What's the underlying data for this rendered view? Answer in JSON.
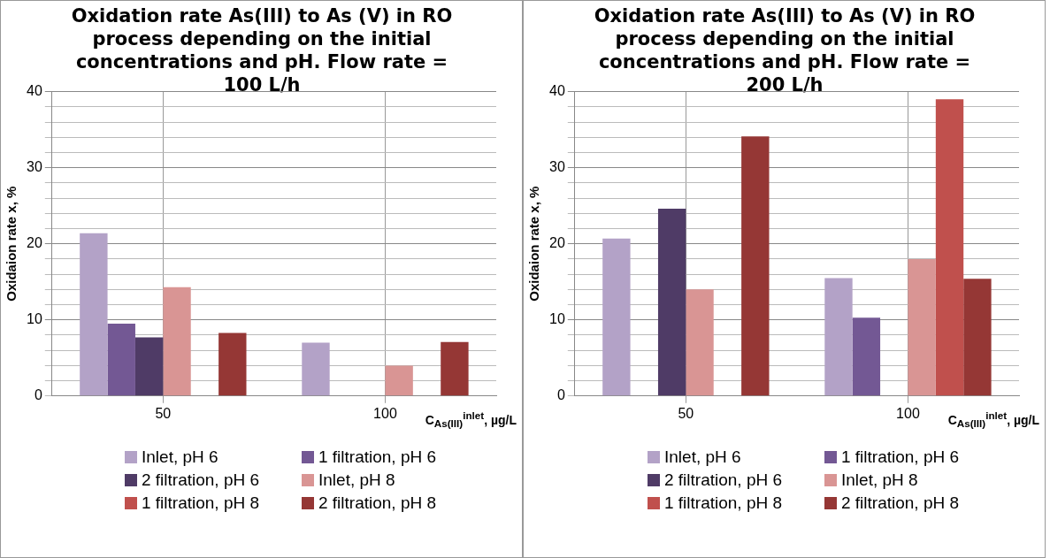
{
  "chart_data": [
    {
      "type": "bar",
      "title": "Oxidation rate As(III) to As (V) in RO process depending on the initial concentrations and pH. Flow rate = 100 L/h",
      "xlabel": "C$_{As(III)}$$^{inlet}$, µg/L",
      "ylabel": "Oxidaion rate x, %",
      "categories": [
        "50",
        "100"
      ],
      "series": [
        {
          "name": "Inlet, pH 6",
          "color": "#b3a2c7",
          "values": [
            21.4,
            7.0
          ]
        },
        {
          "name": "1 filtration, pH 6",
          "color": "#735894",
          "values": [
            9.5,
            null
          ]
        },
        {
          "name": "2 filtration, pH 6",
          "color": "#4f3b66",
          "values": [
            7.7,
            null
          ]
        },
        {
          "name": "Inlet, pH 8",
          "color": "#d99594",
          "values": [
            14.3,
            4.0
          ]
        },
        {
          "name": "1 filtration, pH 8",
          "color": "#c0504d",
          "values": [
            null,
            null
          ]
        },
        {
          "name": "2 filtration, pH 8",
          "color": "#953735",
          "values": [
            8.3,
            7.1
          ]
        }
      ],
      "ylim": [
        0,
        40
      ],
      "yticks": [
        0,
        {
          "value": 2,
          "label": null
        },
        {
          "value": 4,
          "label": null
        },
        {
          "value": 6,
          "label": null
        },
        {
          "value": 8,
          "label": null
        },
        10,
        {
          "value": 12,
          "label": null
        },
        {
          "value": 14,
          "label": null
        },
        {
          "value": 16,
          "label": null
        },
        {
          "value": 18,
          "label": null
        },
        20,
        {
          "value": 22,
          "label": null
        },
        {
          "value": 24,
          "label": null
        },
        {
          "value": 26,
          "label": null
        },
        {
          "value": 28,
          "label": null
        },
        30,
        {
          "value": 32,
          "label": null
        },
        {
          "value": 34,
          "label": null
        },
        {
          "value": 36,
          "label": null
        },
        {
          "value": 38,
          "label": null
        },
        40
      ],
      "grid": true,
      "legend": "bottom"
    },
    {
      "type": "bar",
      "title": "Oxidation rate As(III) to As (V) in RO process depending on the initial concentrations and pH. Flow rate = 200 L/h",
      "xlabel": "C$_{As(III)}$$^{inlet}$, µg/L",
      "ylabel": "Oxidaion rate x, %",
      "categories": [
        "50",
        "100"
      ],
      "series": [
        {
          "name": "Inlet, pH 6",
          "color": "#b3a2c7",
          "values": [
            20.7,
            15.5
          ]
        },
        {
          "name": "1 filtration, pH 6",
          "color": "#735894",
          "values": [
            null,
            10.3
          ]
        },
        {
          "name": "2 filtration, pH 6",
          "color": "#4f3b66",
          "values": [
            24.6,
            null
          ]
        },
        {
          "name": "Inlet, pH 8",
          "color": "#d99594",
          "values": [
            14.0,
            18.0
          ]
        },
        {
          "name": "1 filtration, pH 8",
          "color": "#c0504d",
          "values": [
            null,
            39.0
          ]
        },
        {
          "name": "2 filtration, pH 8",
          "color": "#953735",
          "values": [
            34.1,
            15.4
          ]
        }
      ],
      "ylim": [
        0,
        40
      ],
      "yticks": [
        0,
        {
          "value": 2,
          "label": null
        },
        {
          "value": 4,
          "label": null
        },
        {
          "value": 6,
          "label": null
        },
        {
          "value": 8,
          "label": null
        },
        10,
        {
          "value": 12,
          "label": null
        },
        {
          "value": 14,
          "label": null
        },
        {
          "value": 16,
          "label": null
        },
        {
          "value": 18,
          "label": null
        },
        20,
        {
          "value": 22,
          "label": null
        },
        {
          "value": 24,
          "label": null
        },
        {
          "value": 26,
          "label": null
        },
        {
          "value": 28,
          "label": null
        },
        30,
        {
          "value": 32,
          "label": null
        },
        {
          "value": 34,
          "label": null
        },
        {
          "value": 36,
          "label": null
        },
        {
          "value": 38,
          "label": null
        },
        40
      ],
      "grid": true,
      "legend": "bottom"
    }
  ]
}
